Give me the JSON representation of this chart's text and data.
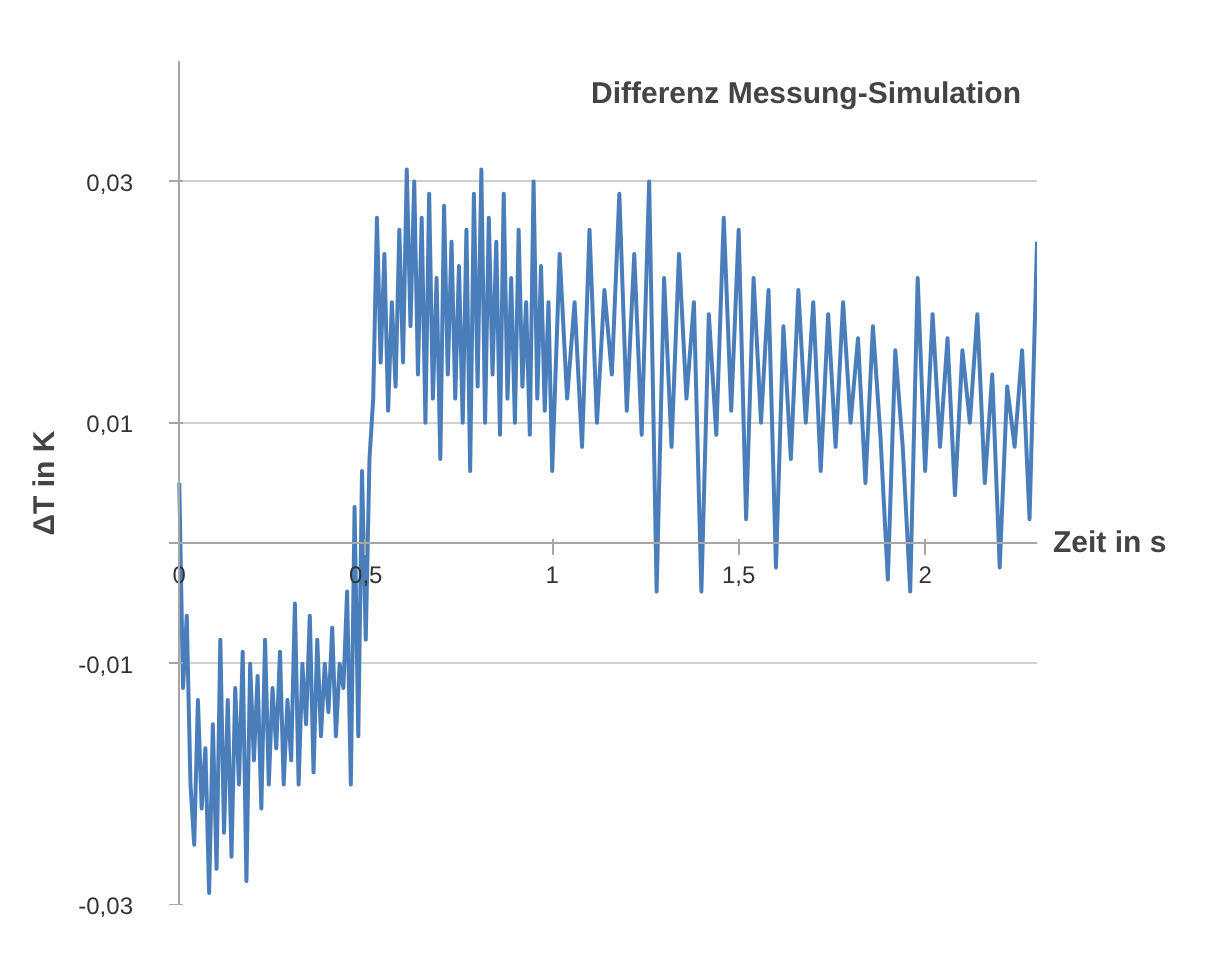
{
  "chart_data": {
    "type": "line",
    "title": "Differenz Messung-Simulation",
    "xlabel": "Zeit in s",
    "ylabel": "ΔT in K",
    "xlim": [
      0,
      2.3
    ],
    "ylim": [
      -0.03,
      0.04
    ],
    "xticks": [
      0,
      {
        "value": 0.5,
        "label": "0,5"
      },
      1,
      {
        "value": 1.5,
        "label": "1,5"
      },
      2
    ],
    "yticks": [
      {
        "value": -0.03,
        "label": "-0,03"
      },
      {
        "value": -0.01,
        "label": "-0,01"
      },
      {
        "value": 0.01,
        "label": "0,01"
      },
      {
        "value": 0.03,
        "label": "0,03"
      }
    ],
    "grid": "y",
    "marker": "none",
    "line_style": "solid",
    "series": [
      {
        "color": "#4a7ebb",
        "x": [
          0,
          0.01,
          0.02,
          0.03,
          0.04,
          0.05,
          0.06,
          0.07,
          0.08,
          0.09,
          0.1,
          0.11,
          0.12,
          0.13,
          0.14,
          0.15,
          0.16,
          0.17,
          0.18,
          0.19,
          0.2,
          0.21,
          0.22,
          0.23,
          0.24,
          0.25,
          0.26,
          0.27,
          0.28,
          0.29,
          0.3,
          0.31,
          0.32,
          0.33,
          0.34,
          0.35,
          0.36,
          0.37,
          0.38,
          0.39,
          0.4,
          0.41,
          0.42,
          0.43,
          0.44,
          0.45,
          0.46,
          0.47,
          0.48,
          0.49,
          0.5,
          0.51,
          0.52,
          0.53,
          0.54,
          0.55,
          0.56,
          0.57,
          0.58,
          0.59,
          0.6,
          0.61,
          0.62,
          0.63,
          0.64,
          0.65,
          0.66,
          0.67,
          0.68,
          0.69,
          0.7,
          0.71,
          0.72,
          0.73,
          0.74,
          0.75,
          0.76,
          0.77,
          0.78,
          0.79,
          0.8,
          0.81,
          0.82,
          0.83,
          0.84,
          0.85,
          0.86,
          0.87,
          0.88,
          0.89,
          0.9,
          0.91,
          0.92,
          0.93,
          0.94,
          0.95,
          0.96,
          0.97,
          0.98,
          0.99,
          1.0,
          1.02,
          1.04,
          1.06,
          1.08,
          1.1,
          1.12,
          1.14,
          1.16,
          1.18,
          1.2,
          1.22,
          1.24,
          1.26,
          1.28,
          1.3,
          1.32,
          1.34,
          1.36,
          1.38,
          1.4,
          1.42,
          1.44,
          1.46,
          1.48,
          1.5,
          1.52,
          1.54,
          1.56,
          1.58,
          1.6,
          1.62,
          1.64,
          1.66,
          1.68,
          1.7,
          1.72,
          1.74,
          1.76,
          1.78,
          1.8,
          1.82,
          1.84,
          1.86,
          1.88,
          1.9,
          1.92,
          1.94,
          1.96,
          1.98,
          2.0,
          2.02,
          2.04,
          2.06,
          2.08,
          2.1,
          2.12,
          2.14,
          2.16,
          2.18,
          2.2,
          2.22,
          2.24,
          2.26,
          2.28,
          2.3
        ],
        "values": [
          0.005,
          -0.012,
          -0.006,
          -0.02,
          -0.025,
          -0.013,
          -0.022,
          -0.017,
          -0.029,
          -0.015,
          -0.027,
          -0.008,
          -0.024,
          -0.013,
          -0.026,
          -0.012,
          -0.02,
          -0.009,
          -0.028,
          -0.01,
          -0.018,
          -0.011,
          -0.022,
          -0.008,
          -0.02,
          -0.012,
          -0.017,
          -0.009,
          -0.02,
          -0.013,
          -0.018,
          -0.005,
          -0.02,
          -0.01,
          -0.015,
          -0.006,
          -0.019,
          -0.008,
          -0.016,
          -0.01,
          -0.014,
          -0.007,
          -0.016,
          -0.01,
          -0.012,
          -0.004,
          -0.02,
          0.003,
          -0.016,
          0.006,
          -0.008,
          0.007,
          0.012,
          0.027,
          0.015,
          0.024,
          0.011,
          0.02,
          0.013,
          0.026,
          0.015,
          0.031,
          0.018,
          0.03,
          0.014,
          0.027,
          0.01,
          0.029,
          0.012,
          0.022,
          0.007,
          0.028,
          0.014,
          0.025,
          0.012,
          0.023,
          0.01,
          0.026,
          0.006,
          0.029,
          0.013,
          0.031,
          0.01,
          0.027,
          0.014,
          0.025,
          0.009,
          0.029,
          0.012,
          0.022,
          0.01,
          0.026,
          0.013,
          0.02,
          0.009,
          0.03,
          0.012,
          0.023,
          0.011,
          0.02,
          0.006,
          0.024,
          0.012,
          0.02,
          0.008,
          0.026,
          0.01,
          0.021,
          0.014,
          0.029,
          0.011,
          0.024,
          0.009,
          0.03,
          -0.004,
          0.022,
          0.008,
          0.024,
          0.012,
          0.02,
          -0.004,
          0.019,
          0.009,
          0.027,
          0.011,
          0.026,
          0.002,
          0.022,
          0.01,
          0.021,
          -0.002,
          0.018,
          0.007,
          0.021,
          0.01,
          0.02,
          0.006,
          0.019,
          0.008,
          0.02,
          0.01,
          0.017,
          0.005,
          0.018,
          0.009,
          -0.003,
          0.016,
          0.008,
          -0.004,
          0.022,
          0.006,
          0.019,
          0.008,
          0.017,
          0.004,
          0.016,
          0.01,
          0.019,
          0.005,
          0.014,
          -0.002,
          0.013,
          0.008,
          0.016,
          0.002,
          0.025
        ]
      }
    ]
  }
}
